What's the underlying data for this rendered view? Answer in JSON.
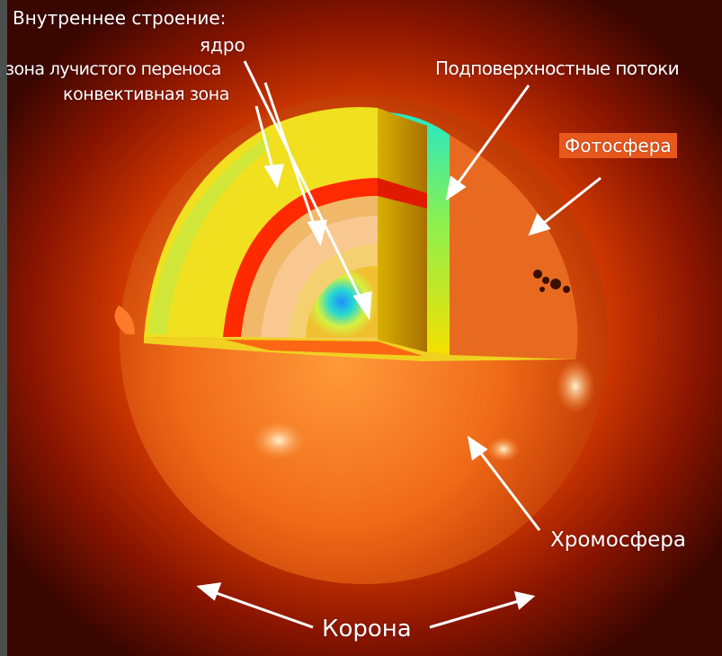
{
  "labels": {
    "internal_structure": "Внутреннее строение:",
    "core": "ядро",
    "radiative_zone": "зона лучистого переноса",
    "convective_zone": "конвективная зона",
    "subsurface_flows": "Подповерхностные потоки",
    "photosphere": "Фотосфера",
    "chromosphere": "Хромосфера",
    "corona": "Корона"
  },
  "colors": {
    "frame": "#4a4f4d",
    "corona_outer": "#5a0a00",
    "surface": "#e8581c",
    "core": "#1e90ff",
    "radiative": "#f5e400",
    "convective_band": "#ff2a00",
    "subsurface": "#25e8c8",
    "label_box": "#e8581c",
    "arrow": "#ffffff"
  }
}
